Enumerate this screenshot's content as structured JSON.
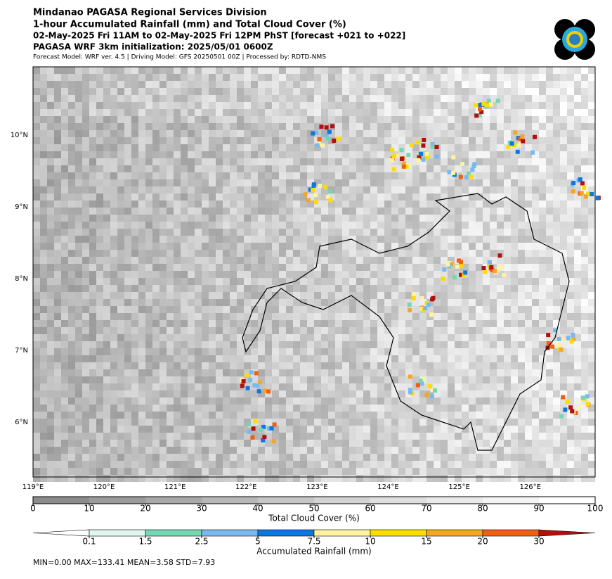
{
  "header": {
    "lines": [
      "Mindanao PAGASA Regional Services Division",
      "1-hour Accumulated Rainfall (mm) and Total Cloud Cover (%)",
      "02-May-2025 Fri 11AM to 02-May-2025 Fri 12PM PhST [forecast +021 to +022]",
      "PAGASA WRF 3km initialization: 2025/05/01 0600Z",
      "Forecast Model: WRF ver. 4.5 | Driving Model: GFS 20250501 00Z | Processed by: RDTD-NMS"
    ]
  },
  "map": {
    "lon_labels": [
      "119°E",
      "120°E",
      "121°E",
      "122°E",
      "123°E",
      "124°E",
      "125°E",
      "126°E"
    ],
    "lat_labels": [
      "10°N",
      "9°N",
      "8°N",
      "7°N",
      "6°N"
    ]
  },
  "cloud_colorbar": {
    "ticks": [
      0,
      10,
      20,
      30,
      40,
      50,
      60,
      70,
      80,
      90,
      100
    ],
    "colors": [
      "#8c8c8c",
      "#9b9b9b",
      "#a9a9a9",
      "#b7b7b7",
      "#c5c5c5",
      "#d3d3d3",
      "#dfdfdf",
      "#eaeaea",
      "#f4f4f4",
      "#ffffff"
    ],
    "label": "Total Cloud Cover (%)"
  },
  "rainfall_colorbar": {
    "ticks": [
      0.1,
      1.5,
      2.5,
      5,
      7.5,
      10,
      15,
      20,
      30
    ],
    "colors": [
      "#ffffff",
      "#dff7ef",
      "#72d8b2",
      "#79b9f2",
      "#0a78e0",
      "#fff3a0",
      "#ffdc00",
      "#f5a623",
      "#f06010",
      "#b01010"
    ],
    "label": "Accumulated Rainfall (mm)"
  },
  "stats": "MIN=0.00   MAX=133.41   MEAN=3.58   STD=7.93"
}
